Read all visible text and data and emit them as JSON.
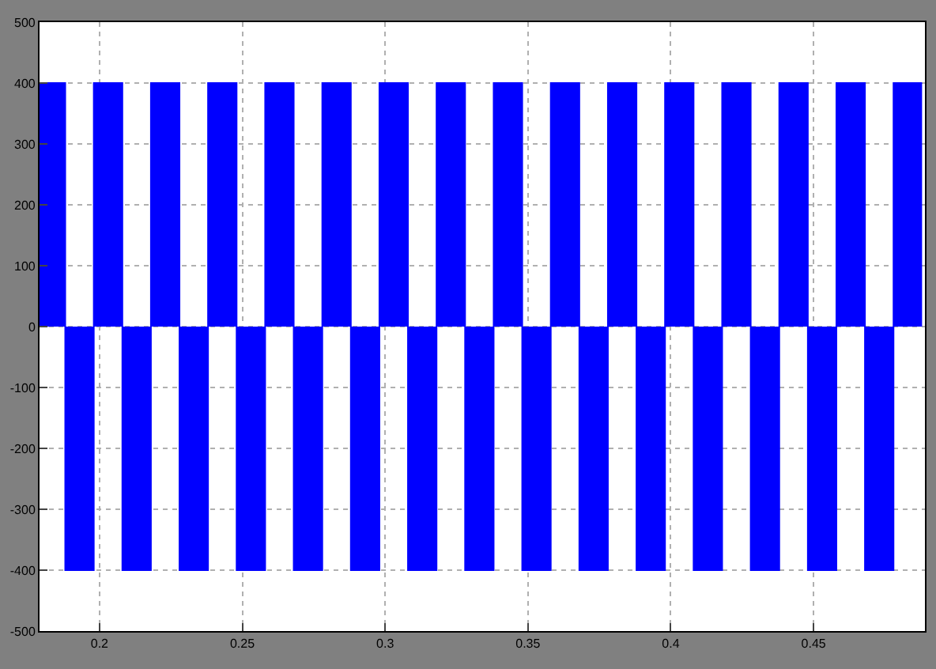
{
  "chart_data": {
    "type": "area",
    "xlim": [
      0.179,
      0.489
    ],
    "ylim": [
      -500,
      500
    ],
    "xticks": [
      0.2,
      0.25,
      0.3,
      0.35,
      0.4,
      0.45
    ],
    "yticks": [
      -500,
      -400,
      -300,
      -200,
      -100,
      0,
      100,
      200,
      300,
      400,
      500
    ],
    "grid": true,
    "line_style": "dotted",
    "series": [
      {
        "color": "#0000ff",
        "x": [
          0.179,
          0.188,
          0.188,
          0.198,
          0.198,
          0.208,
          0.208,
          0.218,
          0.218,
          0.228,
          0.228,
          0.238,
          0.238,
          0.248,
          0.248,
          0.258,
          0.258,
          0.268,
          0.268,
          0.278,
          0.278,
          0.288,
          0.288,
          0.298,
          0.298,
          0.308,
          0.308,
          0.318,
          0.318,
          0.328,
          0.328,
          0.338,
          0.338,
          0.348,
          0.348,
          0.358,
          0.358,
          0.368,
          0.368,
          0.378,
          0.378,
          0.388,
          0.388,
          0.398,
          0.398,
          0.408,
          0.408,
          0.418,
          0.418,
          0.428,
          0.428,
          0.438,
          0.438,
          0.448,
          0.448,
          0.458,
          0.458,
          0.468,
          0.468,
          0.478,
          0.478,
          0.488
        ],
        "values": [
          400,
          400,
          -400,
          -400,
          400,
          400,
          -400,
          -400,
          400,
          400,
          -400,
          -400,
          400,
          400,
          -400,
          -400,
          400,
          400,
          -400,
          -400,
          400,
          400,
          -400,
          -400,
          400,
          400,
          -400,
          -400,
          400,
          400,
          -400,
          -400,
          400,
          400,
          -400,
          -400,
          400,
          400,
          -400,
          -400,
          400,
          400,
          -400,
          -400,
          400,
          400,
          -400,
          -400,
          400,
          400,
          -400,
          -400,
          400,
          400,
          -400,
          -400,
          400,
          400,
          -400,
          -400,
          400,
          400
        ]
      }
    ]
  }
}
